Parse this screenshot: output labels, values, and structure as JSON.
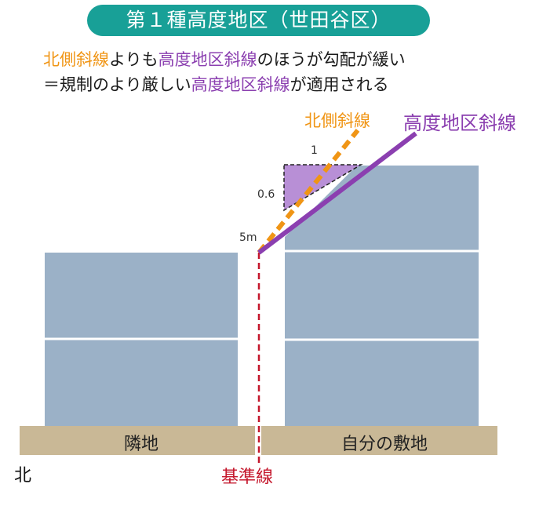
{
  "title": "第１種高度地区（世田谷区）",
  "description": {
    "line1": {
      "a": "北側斜線",
      "b": "よりも",
      "c": "高度地区斜線",
      "d": "のほうが勾配が緩い"
    },
    "line2": {
      "a": "＝規制のより厳しい",
      "b": "高度地区斜線",
      "c": "が適用される"
    }
  },
  "labels": {
    "north_line": "北側斜線",
    "kodo_line": "高度地区斜線",
    "slope_run": "1",
    "slope_rise": "0.6",
    "height_start": "5m",
    "neighbor_land": "隣地",
    "own_land": "自分の敷地",
    "north": "北",
    "baseline": "基準線"
  },
  "colors": {
    "teal": "#18a097",
    "orange": "#f09515",
    "purple": "#8b3fb0",
    "building": "#9bb1c7",
    "ground": "#c9b896",
    "baseline": "#c4162b"
  }
}
